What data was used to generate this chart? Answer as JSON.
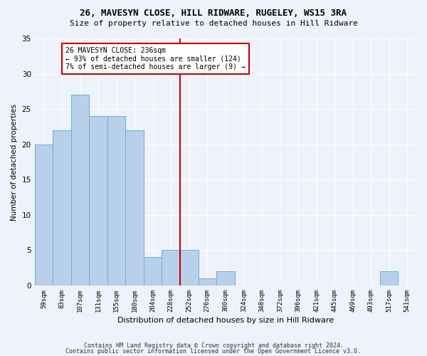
{
  "title": "26, MAVESYN CLOSE, HILL RIDWARE, RUGELEY, WS15 3RA",
  "subtitle": "Size of property relative to detached houses in Hill Ridware",
  "xlabel": "Distribution of detached houses by size in Hill Ridware",
  "ylabel": "Number of detached properties",
  "bar_color": "#b8d0ea",
  "bar_edge_color": "#6aaed6",
  "background_color": "#eef2fb",
  "grid_color": "#ffffff",
  "categories": [
    "59sqm",
    "83sqm",
    "107sqm",
    "131sqm",
    "155sqm",
    "180sqm",
    "204sqm",
    "228sqm",
    "252sqm",
    "276sqm",
    "300sqm",
    "324sqm",
    "348sqm",
    "372sqm",
    "396sqm",
    "421sqm",
    "445sqm",
    "469sqm",
    "493sqm",
    "517sqm",
    "541sqm"
  ],
  "values": [
    20,
    22,
    27,
    24,
    24,
    22,
    4,
    5,
    5,
    1,
    2,
    0,
    0,
    0,
    0,
    0,
    0,
    0,
    0,
    2,
    0
  ],
  "ylim": [
    0,
    35
  ],
  "yticks": [
    0,
    5,
    10,
    15,
    20,
    25,
    30,
    35
  ],
  "property_label": "26 MAVESYN CLOSE: 236sqm",
  "annotation_line1": "← 93% of detached houses are smaller (124)",
  "annotation_line2": "7% of semi-detached houses are larger (9) →",
  "vline_color": "#cc0000",
  "annotation_box_color": "#ffffff",
  "annotation_box_edge": "#cc0000",
  "footer1": "Contains HM Land Registry data © Crown copyright and database right 2024.",
  "footer2": "Contains public sector information licensed under the Open Government Licence v3.0.",
  "vline_x_index": 7.5,
  "fig_width": 6.0,
  "fig_height": 5.0,
  "dpi": 100
}
